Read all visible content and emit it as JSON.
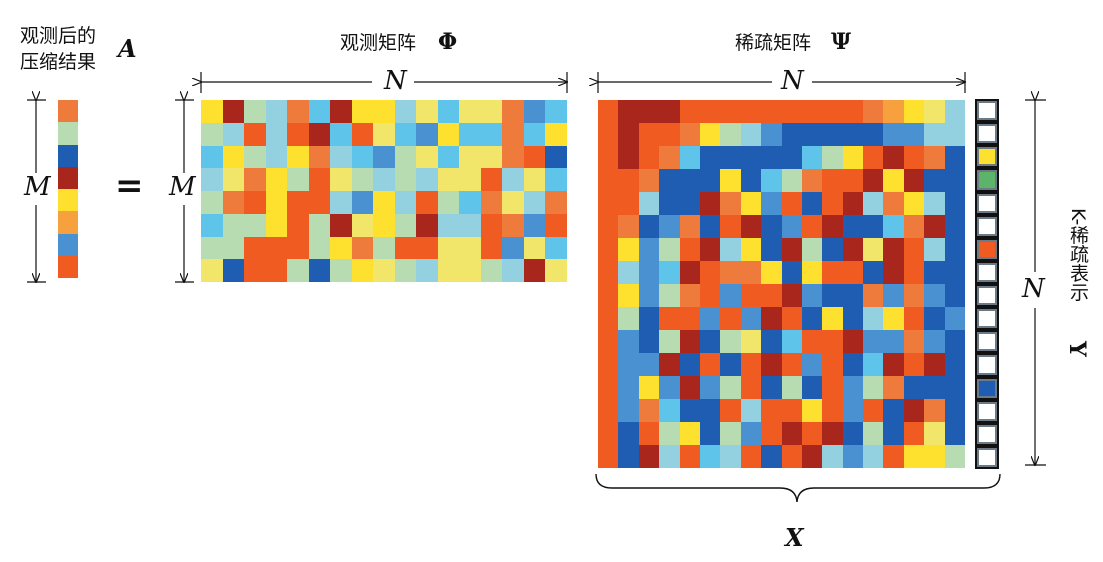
{
  "labels": {
    "a_caption_line1": "观测后的",
    "a_caption_line2": "压缩结果",
    "a_symbol": "A",
    "phi_caption": "观测矩阵",
    "phi_symbol": "Φ",
    "psi_caption": "稀疏矩阵",
    "psi_symbol": "Ψ",
    "equals": "=",
    "dim_m_left": "M",
    "dim_m_phi": "M",
    "dim_n_phi": "N",
    "dim_n_psi": "N",
    "dim_n_right": "N",
    "x_symbol": "X",
    "y_caption": "K-稀疏表示",
    "y_symbol": "Y"
  },
  "colors": {
    "R": "#f05b22",
    "r": "#ee7b3c",
    "D": "#a8261b",
    "Y": "#fde12e",
    "y": "#f2e66a",
    "B": "#1f5db2",
    "b": "#4a91d2",
    "C": "#5fc4ea",
    "c": "#93d1e1",
    "L": "#b7dcb1",
    "G": "#5bb46a",
    "K": "#141414",
    "W": "#ffffff",
    "o": "#f7a03e"
  },
  "matrix_a": [
    "r",
    "L",
    "B",
    "D",
    "Y",
    "o",
    "b",
    "R"
  ],
  "matrix_phi": [
    "YDLcrCDYYcyCyyrbC",
    "LcRcRDCRyCbYCCrCY",
    "CYLcYrcCbLyCyyrRB",
    "cyrYLRyLcLcyyRcyC",
    "LrRYRRcbYcRLCrycr",
    "CLLYRLDyYLDccRrbR",
    "LLRRRLYrLRRyyRbyC",
    "yBRRLBLYyLcyyLcDy"
  ],
  "matrix_psi": [
    "RDDDRRRRRRRRRroYyc",
    "RDRRrYLcbBBBBBbbcc",
    "RDRrCBBBBBCLYRDRrB",
    "RRrBBBYBCLrRRDYDBB",
    "RRcBBDrYbRBRDcrYcB",
    "RrBbrBRDBbRDBBCrDB",
    "RYbLRDcYBDLBDyDRcB",
    "RcbCDRrrYBYRRBDRBB",
    "RYbLrRbRRDbBBrbrbB",
    "RLBRRbRbDRBYBcYRBb",
    "RbBLDBLyBCRRDbbrbB",
    "RbbDBRBRDRbRBCDRDB",
    "RbYbDbLRBLBRbLrBBB",
    "RbrCBBRcRRYRbRBDrB",
    "RBRLYBLbRDRDBLBRyB",
    "RBDcRCcRBRDcbcRYYL"
  ],
  "matrix_y": [
    "W",
    "W",
    "Y",
    "G",
    "W",
    "W",
    "R",
    "W",
    "W",
    "W",
    "W",
    "W",
    "B",
    "W",
    "W",
    "W"
  ]
}
